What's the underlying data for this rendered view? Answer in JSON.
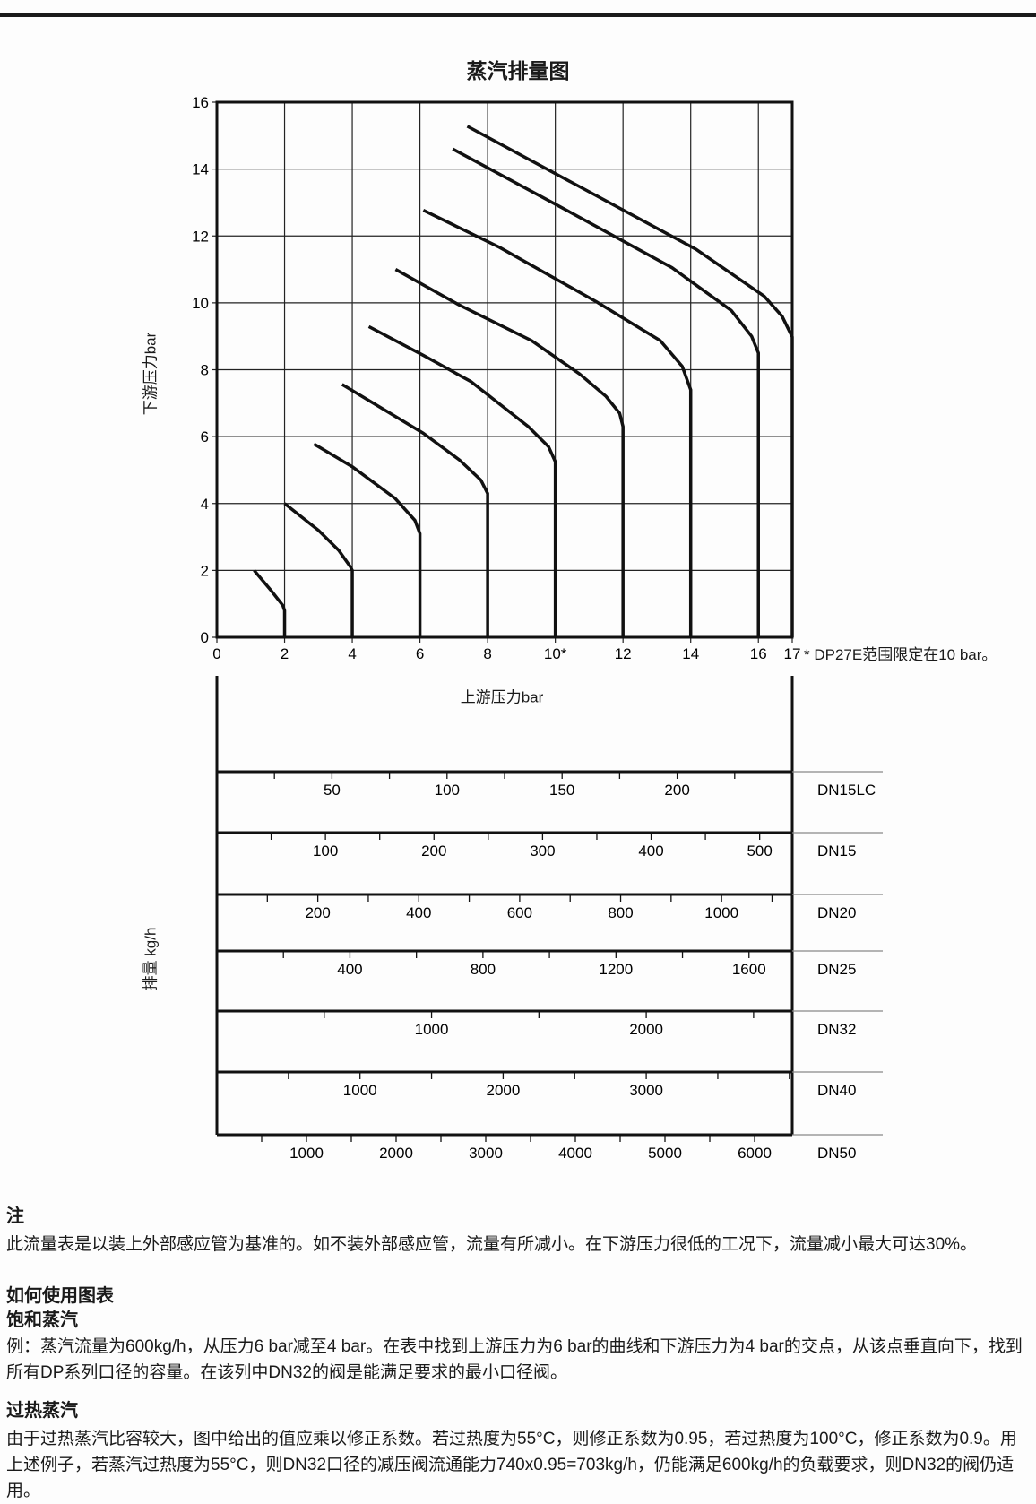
{
  "chart_data": {
    "title": "蒸汽排量图",
    "line_chart": {
      "type": "line",
      "xlabel": "上游压力bar",
      "ylabel": "下游压力bar",
      "xlim": [
        0,
        17
      ],
      "ylim": [
        0,
        16
      ],
      "grid": true,
      "x_ticks": [
        "0",
        "2",
        "4",
        "6",
        "8",
        "10*",
        "12",
        "14",
        "16",
        "17"
      ],
      "x_tick_values": [
        0,
        2,
        4,
        6,
        8,
        10,
        12,
        14,
        16,
        17
      ],
      "y_ticks": [
        "0",
        "2",
        "4",
        "6",
        "8",
        "10",
        "12",
        "14",
        "16"
      ],
      "y_tick_values": [
        0,
        2,
        4,
        6,
        8,
        10,
        12,
        14,
        16
      ],
      "footnote": "* DP27E范围限定在10 bar。",
      "series": [
        {
          "upstream": 2,
          "points": [
            [
              1.1,
              2.0
            ],
            [
              1.6,
              1.4
            ],
            [
              1.95,
              0.95
            ],
            [
              2,
              0.8
            ],
            [
              2,
              0
            ]
          ]
        },
        {
          "upstream": 4,
          "points": [
            [
              2.0,
              4.0
            ],
            [
              3.0,
              3.2
            ],
            [
              3.6,
              2.6
            ],
            [
              3.95,
              2.1
            ],
            [
              4,
              2.0
            ],
            [
              4,
              0
            ]
          ]
        },
        {
          "upstream": 6,
          "points": [
            [
              2.87,
              5.78
            ],
            [
              4.0,
              5.1
            ],
            [
              5.27,
              4.15
            ],
            [
              5.85,
              3.5
            ],
            [
              6.0,
              3.1
            ],
            [
              6,
              0
            ]
          ]
        },
        {
          "upstream": 8,
          "points": [
            [
              3.7,
              7.56
            ],
            [
              6.1,
              6.1
            ],
            [
              7.17,
              5.3
            ],
            [
              7.8,
              4.7
            ],
            [
              8.0,
              4.3
            ],
            [
              8,
              0
            ]
          ]
        },
        {
          "upstream": 10,
          "points": [
            [
              4.49,
              9.29
            ],
            [
              6.1,
              8.43
            ],
            [
              7.5,
              7.65
            ],
            [
              9.2,
              6.3
            ],
            [
              9.8,
              5.7
            ],
            [
              10.0,
              5.25
            ],
            [
              10,
              0
            ]
          ]
        },
        {
          "upstream": 12,
          "points": [
            [
              5.28,
              11.0
            ],
            [
              7.17,
              9.93
            ],
            [
              9.3,
              8.87
            ],
            [
              10.72,
              7.87
            ],
            [
              11.5,
              7.2
            ],
            [
              11.9,
              6.7
            ],
            [
              12.0,
              6.3
            ],
            [
              12,
              0
            ]
          ]
        },
        {
          "upstream": 14,
          "points": [
            [
              6.1,
              12.77
            ],
            [
              8.35,
              11.66
            ],
            [
              11.2,
              10.04
            ],
            [
              13.1,
              8.87
            ],
            [
              13.75,
              8.1
            ],
            [
              14.0,
              7.4
            ],
            [
              14,
              0
            ]
          ]
        },
        {
          "upstream": 16,
          "points": [
            [
              6.97,
              14.6
            ],
            [
              10.13,
              12.88
            ],
            [
              13.45,
              11.05
            ],
            [
              15.2,
              9.77
            ],
            [
              15.8,
              9.0
            ],
            [
              16.0,
              8.5
            ],
            [
              16,
              0
            ]
          ]
        },
        {
          "upstream": 17,
          "points": [
            [
              7.4,
              15.28
            ],
            [
              14.16,
              11.6
            ],
            [
              16.17,
              10.2
            ],
            [
              16.7,
              9.6
            ],
            [
              17.0,
              8.98
            ],
            [
              17,
              0
            ]
          ]
        }
      ]
    },
    "flow_scales": {
      "ylabel": "排量 kg/h",
      "rows": [
        {
          "name": "DN15LC",
          "max": 250,
          "minor": 25,
          "labels": [
            "50",
            "100",
            "150",
            "200"
          ],
          "label_values": [
            50,
            100,
            150,
            200
          ]
        },
        {
          "name": "DN15",
          "max": 530,
          "minor": 50,
          "labels": [
            "100",
            "200",
            "300",
            "400",
            "500"
          ],
          "label_values": [
            100,
            200,
            300,
            400,
            500
          ]
        },
        {
          "name": "DN20",
          "max": 1140,
          "minor": 100,
          "labels": [
            "200",
            "400",
            "600",
            "800",
            "1000"
          ],
          "label_values": [
            200,
            400,
            600,
            800,
            1000
          ]
        },
        {
          "name": "DN25",
          "max": 1730,
          "minor": 200,
          "labels": [
            "400",
            "800",
            "1200",
            "1600"
          ],
          "label_values": [
            400,
            800,
            1200,
            1600
          ]
        },
        {
          "name": "DN32",
          "max": 2680,
          "minor": 500,
          "labels": [
            "1000",
            "2000"
          ],
          "label_values": [
            1000,
            2000
          ]
        },
        {
          "name": "DN40",
          "max": 4020,
          "minor": 500,
          "labels": [
            "1000",
            "2000",
            "3000"
          ],
          "label_values": [
            1000,
            2000,
            3000
          ]
        },
        {
          "name": "DN50",
          "max": 6420,
          "minor": 500,
          "labels": [
            "1000",
            "2000",
            "3000",
            "4000",
            "5000",
            "6000"
          ],
          "label_values": [
            1000,
            2000,
            3000,
            4000,
            5000,
            6000
          ]
        }
      ]
    }
  },
  "notes": {
    "heading": "注",
    "text": "此流量表是以装上外部感应管为基准的。如不装外部感应管，流量有所减小。在下游压力很低的工况下，流量减小最大可达30%。"
  },
  "howto": {
    "heading": "如何使用图表",
    "saturated_heading": "饱和蒸汽",
    "saturated_text": "例：蒸汽流量为600kg/h，从压力6 bar减至4 bar。在表中找到上游压力为6 bar的曲线和下游压力为4 bar的交点，从该点垂直向下，找到所有DP系列口径的容量。在该列中DN32的阀是能满足要求的最小口径阀。",
    "superheated_heading": "过热蒸汽",
    "superheated_text": "由于过热蒸汽比容较大，图中给出的值应乘以修正系数。若过热度为55°C，则修正系数为0.95，若过热度为100°C，修正系数为0.9。用上述例子，若蒸汽过热度为55°C，则DN32口径的减压阀流通能力740x0.95=703kg/h，仍能满足600kg/h的负载要求，则DN32的阀仍适用。"
  }
}
